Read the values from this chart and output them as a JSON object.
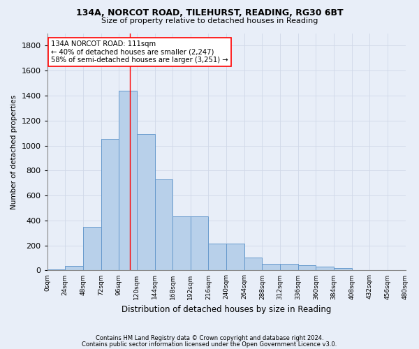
{
  "title1": "134A, NORCOT ROAD, TILEHURST, READING, RG30 6BT",
  "title2": "Size of property relative to detached houses in Reading",
  "xlabel": "Distribution of detached houses by size in Reading",
  "ylabel": "Number of detached properties",
  "footnote1": "Contains HM Land Registry data © Crown copyright and database right 2024.",
  "footnote2": "Contains public sector information licensed under the Open Government Licence v3.0.",
  "bin_edges": [
    0,
    24,
    48,
    72,
    96,
    120,
    144,
    168,
    192,
    216,
    240,
    264,
    288,
    312,
    336,
    360,
    384,
    408,
    432,
    456,
    480
  ],
  "bar_values": [
    10,
    35,
    350,
    1055,
    1440,
    1090,
    730,
    430,
    430,
    215,
    215,
    105,
    50,
    50,
    40,
    28,
    18,
    0,
    0,
    0
  ],
  "bar_color": "#b8d0ea",
  "bar_edge_color": "#6699cc",
  "grid_color": "#d0d8e8",
  "vline_x": 111,
  "vline_color": "red",
  "annotation_line1": "134A NORCOT ROAD: 111sqm",
  "annotation_line2": "← 40% of detached houses are smaller (2,247)",
  "annotation_line3": "58% of semi-detached houses are larger (3,251) →",
  "annotation_box_color": "white",
  "annotation_box_edge_color": "red",
  "ylim": [
    0,
    1900
  ],
  "xlim": [
    0,
    480
  ],
  "background_color": "#e8eef8"
}
